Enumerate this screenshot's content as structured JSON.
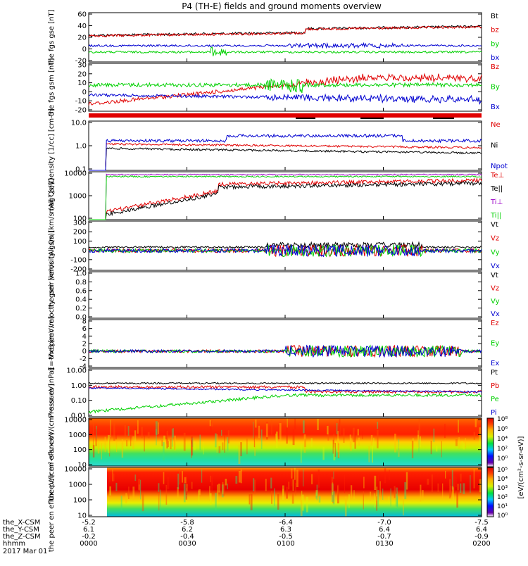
{
  "title": "P4 (TH-E) fields and ground moments overview",
  "colors": {
    "black": "#000000",
    "red": "#e00000",
    "green": "#00d000",
    "blue": "#0000d0",
    "purple": "#9b00c8"
  },
  "ephemeris": {
    "rows": [
      {
        "label": "the_X-CSM",
        "values": [
          "-5.2",
          "-5.8",
          "-6.4",
          "-7.0",
          "-7.5"
        ]
      },
      {
        "label": "the_Y-CSM",
        "values": [
          "6.1",
          "6.2",
          "6.3",
          "6.4",
          "6.4"
        ]
      },
      {
        "label": "the_Z-CSM",
        "values": [
          "-0.2",
          "-0.4",
          "-0.5",
          "-0.7",
          "-0.9"
        ]
      },
      {
        "label": "hhmm",
        "values": [
          "0000",
          "0030",
          "0100",
          "0130",
          "0200"
        ]
      }
    ],
    "date": "2017 Mar 01"
  },
  "colorbar": {
    "label": "[eV/(cm²-s-sr-eV)]",
    "upper_ticks": [
      "10⁸",
      "10⁶",
      "10⁴",
      "10²",
      "10⁰"
    ],
    "lower_ticks": [
      "10⁵",
      "10⁴",
      "10³",
      "10²",
      "10¹",
      "10⁰"
    ]
  },
  "chart_data": [
    {
      "type": "line",
      "id": "fgs_gse",
      "ylabel": "the fgs gse [nT]",
      "yticks": [
        "60",
        "40",
        "20",
        "0",
        "-20"
      ],
      "ylim": [
        -20,
        60
      ],
      "series": [
        {
          "name": "Bt",
          "color": "black"
        },
        {
          "name": "bz",
          "color": "red"
        },
        {
          "name": "by",
          "color": "green"
        },
        {
          "name": "bx",
          "color": "blue"
        }
      ],
      "legend": [
        "Bt",
        "bz",
        "by",
        "bx"
      ]
    },
    {
      "type": "line",
      "id": "fgs_gsm",
      "ylabel": "the fgs gsm [nT]",
      "yticks": [
        "30",
        "20",
        "10",
        "0",
        "-10",
        "-20"
      ],
      "ylim": [
        -20,
        30
      ],
      "series": [
        {
          "name": "Bz",
          "color": "red"
        },
        {
          "name": "By",
          "color": "green"
        },
        {
          "name": "Bx",
          "color": "blue"
        }
      ],
      "legend": [
        "Bz",
        "By",
        "Bx"
      ]
    },
    {
      "type": "line",
      "id": "density",
      "ylabel": "Density [1/cc] [cm-3]",
      "yticks": [
        "10.0",
        "1.0",
        "0.1"
      ],
      "log": true,
      "series": [
        {
          "name": "Ne",
          "color": "red"
        },
        {
          "name": "Ni",
          "color": "black"
        },
        {
          "name": "Npot",
          "color": "blue"
        }
      ],
      "legend": [
        "Ne",
        "Ni",
        "Npot"
      ]
    },
    {
      "type": "line",
      "id": "temperature",
      "ylabel": "mag³ [eV]",
      "yticks": [
        "10000",
        "1000",
        "100"
      ],
      "log": true,
      "series": [
        {
          "name": "Te⊥",
          "color": "red"
        },
        {
          "name": "Te||",
          "color": "black"
        },
        {
          "name": "Ti⊥",
          "color": "purple"
        },
        {
          "name": "Ti||",
          "color": "green"
        }
      ],
      "legend": [
        "Te⊥",
        "Te||",
        "Ti⊥",
        "Ti||"
      ]
    },
    {
      "type": "line",
      "id": "peir_velocity",
      "ylabel": "the peir velocity gsm [km/s (All Qs)]",
      "yticks": [
        "300",
        "200",
        "100",
        "0",
        "-100",
        "-200"
      ],
      "ylim": [
        -200,
        300
      ],
      "series": [
        {
          "name": "Vt",
          "color": "black"
        },
        {
          "name": "Vz",
          "color": "red"
        },
        {
          "name": "Vy",
          "color": "green"
        },
        {
          "name": "Vx",
          "color": "blue"
        }
      ],
      "legend": [
        "Vt",
        "Vz",
        "Vy",
        "Vx"
      ]
    },
    {
      "type": "line",
      "id": "peer_velocity",
      "ylabel": "the peer velocity gsm [km/s (All Qs)]",
      "yticks": [
        "1.0",
        "0.8",
        "0.6",
        "0.4",
        "0.2",
        "0.0"
      ],
      "ylim": [
        0,
        1
      ],
      "series": [],
      "legend": [
        "Vt",
        "Vz",
        "Vy",
        "Vx"
      ]
    },
    {
      "type": "line",
      "id": "efield",
      "ylabel": "E=-VxB [mV/m]",
      "yticks": [
        "8",
        "6",
        "4",
        "2",
        "0",
        "-2",
        "-4"
      ],
      "ylim": [
        -4,
        8
      ],
      "series": [
        {
          "name": "Ez",
          "color": "red"
        },
        {
          "name": "Ey",
          "color": "green"
        },
        {
          "name": "Ex",
          "color": "blue"
        }
      ],
      "legend": [
        "Ez",
        "Ey",
        "Ex"
      ]
    },
    {
      "type": "line",
      "id": "pressure",
      "ylabel": "Pressure [nPa]",
      "yticks": [
        "10.00",
        "1.00",
        "0.10",
        "0.01"
      ],
      "log": true,
      "series": [
        {
          "name": "Pt",
          "color": "black"
        },
        {
          "name": "Pb",
          "color": "red"
        },
        {
          "name": "Pe",
          "color": "green"
        },
        {
          "name": "Pi",
          "color": "blue"
        }
      ],
      "legend": [
        "Pt",
        "Pb",
        "Pe",
        "Pi"
      ]
    },
    {
      "type": "heatmap",
      "id": "peir_en",
      "ylabel": "the peir en eflux eV/(cm²-s-sr-eV)",
      "yticks": [
        "10000",
        "1000",
        "100",
        "10"
      ]
    },
    {
      "type": "heatmap",
      "id": "peer_en",
      "ylabel": "the peer en eflux eV/(cm²-s-sr-eV)",
      "yticks": [
        "10000",
        "1000",
        "100",
        "10"
      ]
    }
  ]
}
